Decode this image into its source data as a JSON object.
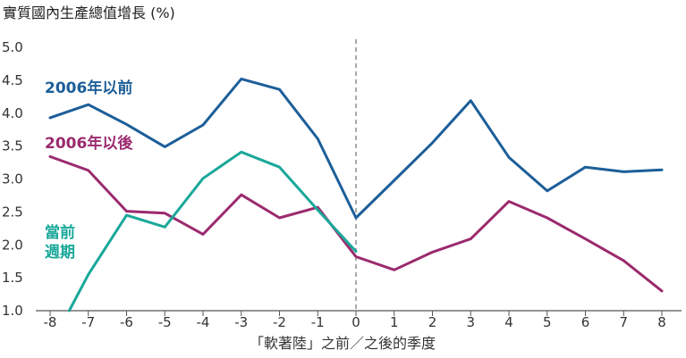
{
  "chart_data": {
    "type": "line",
    "title": "實質國內生產總值增長 (%)",
    "xlabel": "「軟著陸」之前／之後的季度",
    "ylabel": "",
    "xlim": [
      -8,
      8
    ],
    "ylim": [
      1.0,
      5.0
    ],
    "x_ticks": [
      "-8",
      "-7",
      "-6",
      "-5",
      "-4",
      "-3",
      "-2",
      "-1",
      "0",
      "1",
      "2",
      "3",
      "4",
      "5",
      "6",
      "7",
      "8"
    ],
    "y_ticks": [
      "1.0",
      "1.5",
      "2.0",
      "2.5",
      "3.0",
      "3.5",
      "4.0",
      "4.5",
      "5.0"
    ],
    "grid": false,
    "reference_line_x": 0,
    "series": [
      {
        "name": "2006年以前",
        "color": "#1c5e99",
        "x": [
          -8,
          -7,
          -6,
          -5,
          -4,
          -3,
          -2,
          -1,
          0,
          1,
          2,
          3,
          4,
          5,
          6,
          7,
          8
        ],
        "values": [
          3.93,
          4.13,
          3.83,
          3.49,
          3.82,
          4.52,
          4.36,
          3.61,
          2.41,
          2.98,
          3.55,
          4.19,
          3.33,
          2.82,
          3.18,
          3.11,
          3.14
        ]
      },
      {
        "name": "2006年以後",
        "color": "#9b2a6e",
        "x": [
          -8,
          -7,
          -6,
          -5,
          -4,
          -3,
          -2,
          -1,
          0,
          1,
          2,
          3,
          4,
          5,
          6,
          7,
          8
        ],
        "values": [
          3.34,
          3.13,
          2.51,
          2.48,
          2.16,
          2.76,
          2.41,
          2.57,
          1.82,
          1.62,
          1.89,
          2.09,
          2.66,
          2.41,
          2.09,
          1.76,
          1.3
        ]
      },
      {
        "name": "當前週期",
        "color": "#1aa89a",
        "x": [
          -7.5,
          -7,
          -6,
          -5,
          -4,
          -3,
          -2,
          -1,
          0
        ],
        "values": [
          1.0,
          1.55,
          2.45,
          2.27,
          3.01,
          3.41,
          3.18,
          2.53,
          1.9
        ]
      }
    ],
    "series_labels": [
      {
        "name": "2006年以前",
        "lines": [
          "2006年以前"
        ]
      },
      {
        "name": "2006年以後",
        "lines": [
          "2006年以後"
        ]
      },
      {
        "name": "當前週期",
        "lines": [
          "當前",
          "週期"
        ]
      }
    ]
  }
}
